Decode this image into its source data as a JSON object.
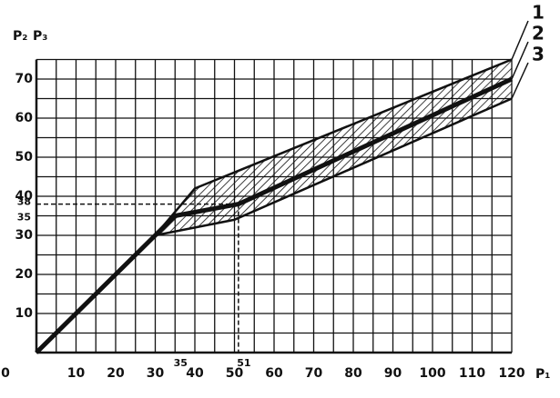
{
  "chart_data": {
    "type": "line",
    "y_labels": [
      "P₂",
      "P₃"
    ],
    "x_label": "P₁",
    "xlim": [
      0,
      120
    ],
    "ylim": [
      0,
      75
    ],
    "xticks": [
      0,
      10,
      20,
      30,
      35,
      40,
      50,
      51,
      60,
      70,
      80,
      90,
      100,
      110,
      120
    ],
    "yticks": [
      10,
      20,
      30,
      35,
      38,
      40,
      50,
      60,
      70
    ],
    "grid": true,
    "grid_step": 5,
    "guides": [
      {
        "x": 51,
        "y": 38
      }
    ],
    "series": [
      {
        "name": "1",
        "color": "#111111",
        "x": [
          30,
          40,
          120
        ],
        "values": [
          30,
          42,
          75
        ]
      },
      {
        "name": "2",
        "color": "#111111",
        "x": [
          0,
          30,
          35,
          51,
          120
        ],
        "values": [
          0,
          30,
          35,
          38,
          70
        ]
      },
      {
        "name": "3",
        "color": "#111111",
        "x": [
          30,
          50,
          120
        ],
        "values": [
          30,
          34,
          65
        ]
      }
    ]
  }
}
